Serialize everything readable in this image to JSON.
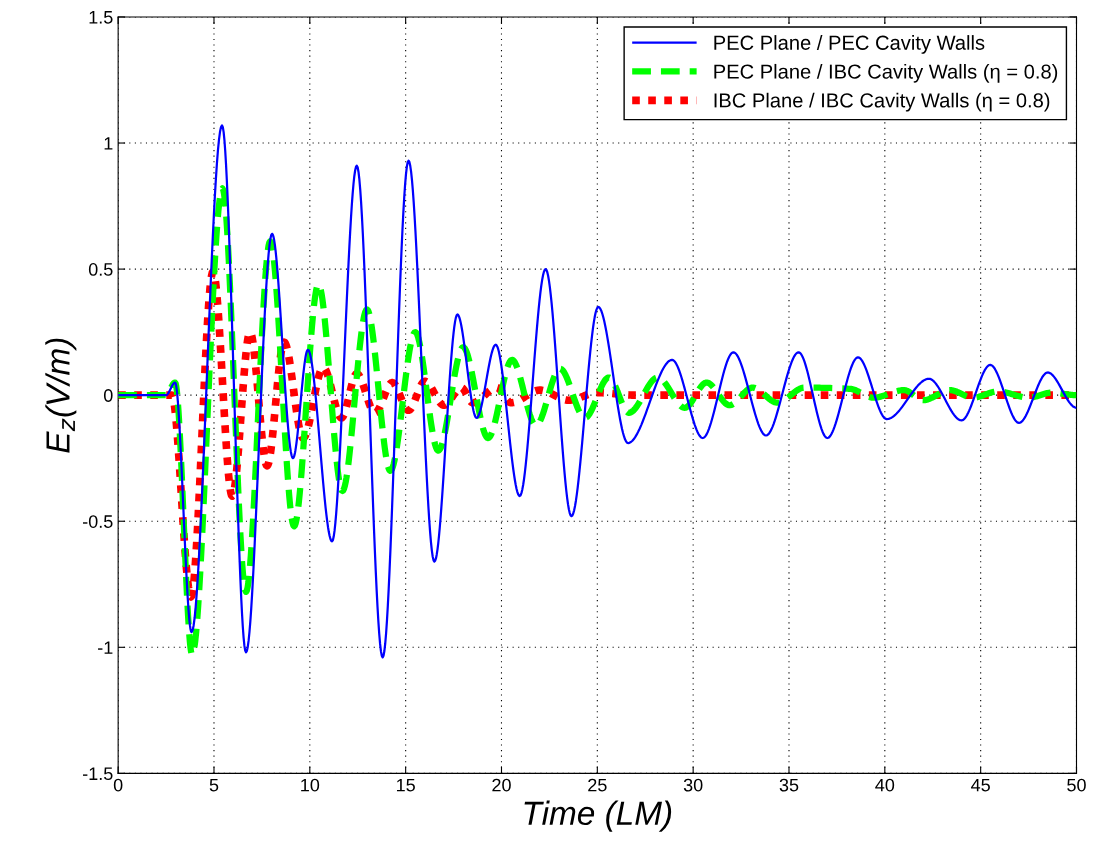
{
  "chart_data": {
    "type": "line",
    "xlabel": "Time (LM)",
    "ylabel": "E$_{z}$(V/m)",
    "xlim": [
      0,
      50
    ],
    "ylim": [
      -1.5,
      1.5
    ],
    "xticks": [
      0,
      5,
      10,
      15,
      20,
      25,
      30,
      35,
      40,
      45,
      50
    ],
    "yticks": [
      -1.5,
      -1,
      -0.5,
      0,
      0.5,
      1,
      1.5
    ],
    "grid": true,
    "legend": "top right",
    "marker": "none",
    "series": [
      {
        "name": "PEC Plane / PEC Cavity Walls",
        "color": "#0000ff",
        "line_style": "solid",
        "x": [
          0,
          2.5,
          2.97,
          3.83,
          5.42,
          6.67,
          8.03,
          9.12,
          9.9,
          11.16,
          12.45,
          13.8,
          15.15,
          16.5,
          17.7,
          18.7,
          19.7,
          20.95,
          22.3,
          23.65,
          25.05,
          26.6,
          28.9,
          30.5,
          32.1,
          33.8,
          35.5,
          37.0,
          38.6,
          40.1,
          42.3,
          44.0,
          45.5,
          47.0,
          48.5,
          50
        ],
        "values": [
          0,
          0,
          0.05,
          -0.94,
          1.07,
          -1.02,
          0.64,
          -0.25,
          0.18,
          -0.58,
          0.91,
          -1.04,
          0.93,
          -0.66,
          0.32,
          -0.09,
          0.2,
          -0.4,
          0.5,
          -0.48,
          0.35,
          -0.19,
          0.14,
          -0.17,
          0.17,
          -0.16,
          0.17,
          -0.17,
          0.15,
          -0.095,
          0.065,
          -0.1,
          0.12,
          -0.11,
          0.09,
          -0.05
        ]
      },
      {
        "name": "PEC Plane / IBC Cavity Walls (η = 0.8)",
        "color": "#00ff00",
        "line_style": "dashed",
        "x": [
          0,
          2.5,
          2.97,
          3.86,
          5.44,
          6.67,
          7.93,
          9.18,
          10.45,
          11.7,
          12.98,
          14.2,
          15.5,
          16.7,
          18.0,
          19.3,
          20.55,
          21.8,
          23.05,
          24.35,
          25.6,
          26.65,
          28.15,
          29.56,
          30.7,
          31.9,
          33.1,
          34.4,
          35.8,
          38.2,
          39.4,
          41.0,
          42.0,
          43.4,
          44.6,
          45.9,
          47.5,
          48.7,
          50
        ],
        "values": [
          0,
          0,
          0.05,
          -1.03,
          0.82,
          -0.78,
          0.61,
          -0.52,
          0.44,
          -0.38,
          0.34,
          -0.3,
          0.25,
          -0.22,
          0.19,
          -0.17,
          0.14,
          -0.12,
          0.105,
          -0.09,
          0.07,
          -0.07,
          0.07,
          -0.05,
          0.05,
          -0.04,
          0.03,
          -0.03,
          0.03,
          0.025,
          -0.01,
          0.02,
          -0.02,
          0.02,
          -0.01,
          0.015,
          -0.01,
          0.01,
          0
        ]
      },
      {
        "name": "IBC Plane / IBC Cavity Walls (η = 0.8)",
        "color": "#ff0000",
        "line_style": "dotted",
        "x": [
          0,
          2.8,
          3.8,
          4.95,
          5.95,
          6.88,
          7.77,
          8.66,
          9.65,
          10.7,
          11.65,
          12.45,
          13.4,
          14.3,
          15.15,
          16.0,
          17.0,
          17.9,
          18.5,
          19.75,
          20.5,
          22.0,
          23.5,
          25.0,
          27.0,
          50
        ],
        "values": [
          0,
          0,
          -0.8,
          0.49,
          -0.4,
          0.25,
          -0.28,
          0.21,
          -0.17,
          0.11,
          -0.09,
          0.085,
          -0.07,
          0.05,
          -0.06,
          0.055,
          -0.04,
          0.03,
          -0.03,
          0.03,
          -0.03,
          0.02,
          -0.02,
          0.01,
          0,
          0
        ]
      }
    ]
  }
}
